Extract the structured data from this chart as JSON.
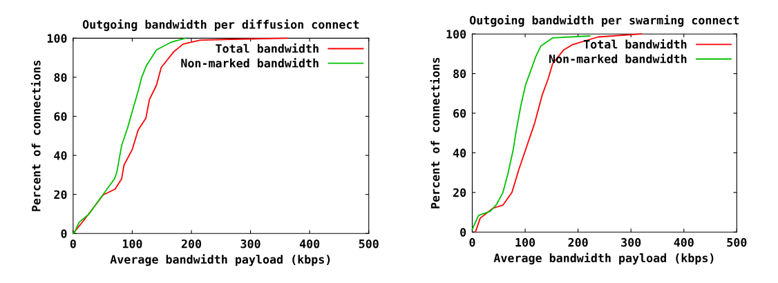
{
  "chart_data": [
    {
      "type": "line",
      "title": "Outgoing bandwidth per diffusion connect",
      "xlabel": "Average bandwidth payload (kbps)",
      "ylabel": "Percent of connections",
      "xlim": [
        0,
        500
      ],
      "ylim": [
        0,
        100
      ],
      "xticks": [
        0,
        100,
        200,
        300,
        400,
        500
      ],
      "yticks": [
        0,
        20,
        40,
        60,
        80,
        100
      ],
      "grid": false,
      "legend": "top right",
      "series": [
        {
          "name": "Total bandwidth",
          "color": "#ff0000",
          "x": [
            0,
            2,
            18,
            51,
            71,
            82,
            86,
            100,
            110,
            123,
            129,
            141,
            149,
            157,
            170,
            186,
            215,
            280,
            362
          ],
          "values": [
            0,
            0.7,
            6.7,
            19.8,
            22.7,
            28,
            35,
            43,
            53,
            59,
            68.5,
            76,
            85,
            88,
            93,
            97,
            99,
            99.5,
            100
          ]
        },
        {
          "name": "Non-marked bandwidth",
          "color": "#00c000",
          "x": [
            0,
            2.5,
            10,
            27,
            47,
            70,
            74,
            82,
            92,
            100,
            110,
            116,
            124,
            141,
            166,
            190
          ],
          "values": [
            0,
            0.7,
            5.7,
            10,
            18.5,
            28,
            31.5,
            45,
            54,
            62.5,
            73,
            80,
            86,
            94,
            98,
            100
          ]
        }
      ]
    },
    {
      "type": "line",
      "title": "Outgoing bandwidth per swarming connect",
      "xlabel": "Average bandwidth payload (kbps)",
      "ylabel": "Percent of connections",
      "xlim": [
        0,
        500
      ],
      "ylim": [
        0,
        100
      ],
      "xticks": [
        0,
        100,
        200,
        300,
        400,
        500
      ],
      "yticks": [
        0,
        20,
        40,
        60,
        80,
        100
      ],
      "grid": false,
      "legend": "top right",
      "series": [
        {
          "name": "Total bandwidth",
          "color": "#ff0000",
          "x": [
            6,
            15,
            39,
            58,
            75,
            88,
            106,
            118,
            132,
            143,
            152,
            173,
            189,
            238,
            320
          ],
          "values": [
            0,
            7,
            12,
            13.6,
            20,
            31.5,
            45.6,
            55,
            69,
            77,
            85,
            92,
            94.5,
            98.5,
            100
          ]
        },
        {
          "name": "Non-marked bandwidth",
          "color": "#00c000",
          "x": [
            0,
            12,
            34,
            46,
            58,
            67,
            77,
            83,
            92,
            101,
            112,
            120,
            130,
            152,
            222
          ],
          "values": [
            1.4,
            8.4,
            10.5,
            14,
            20,
            29,
            41,
            51,
            64,
            74.5,
            82.5,
            88.5,
            94,
            98,
            99
          ]
        }
      ]
    }
  ]
}
